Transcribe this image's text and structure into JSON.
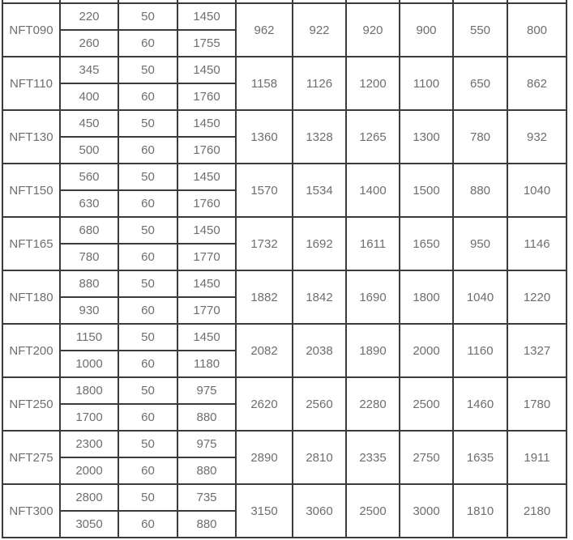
{
  "table": {
    "description_visible": "cropped specification table, header rows cut off above",
    "colors": {
      "border": "#3b3b3b",
      "text": "#6e6e6e",
      "background": "#ffffff"
    },
    "groups": [
      {
        "model": "NFT090",
        "rows": [
          [
            "220",
            "50",
            "1450"
          ],
          [
            "260",
            "60",
            "1755"
          ]
        ],
        "merged": [
          "962",
          "922",
          "920",
          "900",
          "550",
          "800"
        ]
      },
      {
        "model": "NFT110",
        "rows": [
          [
            "345",
            "50",
            "1450"
          ],
          [
            "400",
            "60",
            "1760"
          ]
        ],
        "merged": [
          "1158",
          "1126",
          "1200",
          "1100",
          "650",
          "862"
        ]
      },
      {
        "model": "NFT130",
        "rows": [
          [
            "450",
            "50",
            "1450"
          ],
          [
            "500",
            "60",
            "1760"
          ]
        ],
        "merged": [
          "1360",
          "1328",
          "1265",
          "1300",
          "780",
          "932"
        ]
      },
      {
        "model": "NFT150",
        "rows": [
          [
            "560",
            "50",
            "1450"
          ],
          [
            "630",
            "60",
            "1760"
          ]
        ],
        "merged": [
          "1570",
          "1534",
          "1400",
          "1500",
          "880",
          "1040"
        ]
      },
      {
        "model": "NFT165",
        "rows": [
          [
            "680",
            "50",
            "1450"
          ],
          [
            "780",
            "60",
            "1770"
          ]
        ],
        "merged": [
          "1732",
          "1692",
          "1611",
          "1650",
          "950",
          "1146"
        ]
      },
      {
        "model": "NFT180",
        "rows": [
          [
            "880",
            "50",
            "1450"
          ],
          [
            "930",
            "60",
            "1770"
          ]
        ],
        "merged": [
          "1882",
          "1842",
          "1690",
          "1800",
          "1040",
          "1220"
        ]
      },
      {
        "model": "NFT200",
        "rows": [
          [
            "1150",
            "50",
            "1450"
          ],
          [
            "1000",
            "60",
            "1180"
          ]
        ],
        "merged": [
          "2082",
          "2038",
          "1890",
          "2000",
          "1160",
          "1327"
        ]
      },
      {
        "model": "NFT250",
        "rows": [
          [
            "1800",
            "50",
            "975"
          ],
          [
            "1700",
            "60",
            "880"
          ]
        ],
        "merged": [
          "2620",
          "2560",
          "2280",
          "2500",
          "1460",
          "1780"
        ]
      },
      {
        "model": "NFT275",
        "rows": [
          [
            "2300",
            "50",
            "975"
          ],
          [
            "2000",
            "60",
            "880"
          ]
        ],
        "merged": [
          "2890",
          "2810",
          "2335",
          "2750",
          "1635",
          "1911"
        ]
      },
      {
        "model": "NFT300",
        "rows": [
          [
            "2800",
            "50",
            "735"
          ],
          [
            "3050",
            "60",
            "880"
          ]
        ],
        "merged": [
          "3150",
          "3060",
          "2500",
          "3000",
          "1810",
          "2180"
        ]
      }
    ]
  }
}
